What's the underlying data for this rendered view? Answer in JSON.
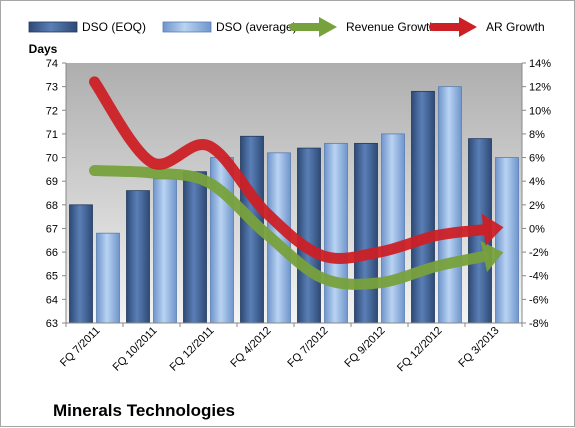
{
  "chart_data": {
    "type": "bar",
    "title": "Minerals Technologies",
    "ylabel": "Days",
    "ylim": [
      63,
      74
    ],
    "y2lim": [
      -8,
      14
    ],
    "y_ticks": [
      "63",
      "64",
      "65",
      "66",
      "67",
      "68",
      "69",
      "70",
      "71",
      "72",
      "73",
      "74"
    ],
    "y2_ticks": [
      "-8%",
      "-6%",
      "-4%",
      "-2%",
      "0%",
      "2%",
      "4%",
      "6%",
      "8%",
      "10%",
      "12%",
      "14%"
    ],
    "categories": [
      "FQ 7/2011",
      "FQ 10/2011",
      "FQ 12/2011",
      "FQ 4/2012",
      "FQ 7/2012",
      "FQ 9/2012",
      "FQ 12/2012",
      "FQ 3/2013"
    ],
    "series": [
      {
        "name": "DSO (EOQ)",
        "kind": "bar",
        "axis": "left",
        "color": "#4a6da4",
        "values": [
          68.0,
          68.6,
          69.4,
          70.9,
          70.4,
          70.6,
          72.8,
          70.8
        ]
      },
      {
        "name": "DSO (average)",
        "kind": "bar",
        "axis": "left",
        "color": "#8fb3e0",
        "values": [
          66.8,
          69.1,
          70.0,
          70.2,
          70.6,
          71.0,
          73.0,
          70.0
        ]
      },
      {
        "name": "Revenue Growth",
        "kind": "trend-arrow",
        "axis": "right",
        "color": "#77a13c",
        "values": [
          4.9,
          4.7,
          3.9,
          -0.4,
          -4.2,
          -4.6,
          -3.2,
          -2.2
        ]
      },
      {
        "name": "AR Growth",
        "kind": "trend-arrow",
        "axis": "right",
        "color": "#cc2026",
        "values": [
          12.4,
          5.6,
          7.0,
          1.4,
          -2.3,
          -2.0,
          -0.6,
          0.0
        ]
      }
    ],
    "grid": false,
    "legend_position": "top"
  }
}
